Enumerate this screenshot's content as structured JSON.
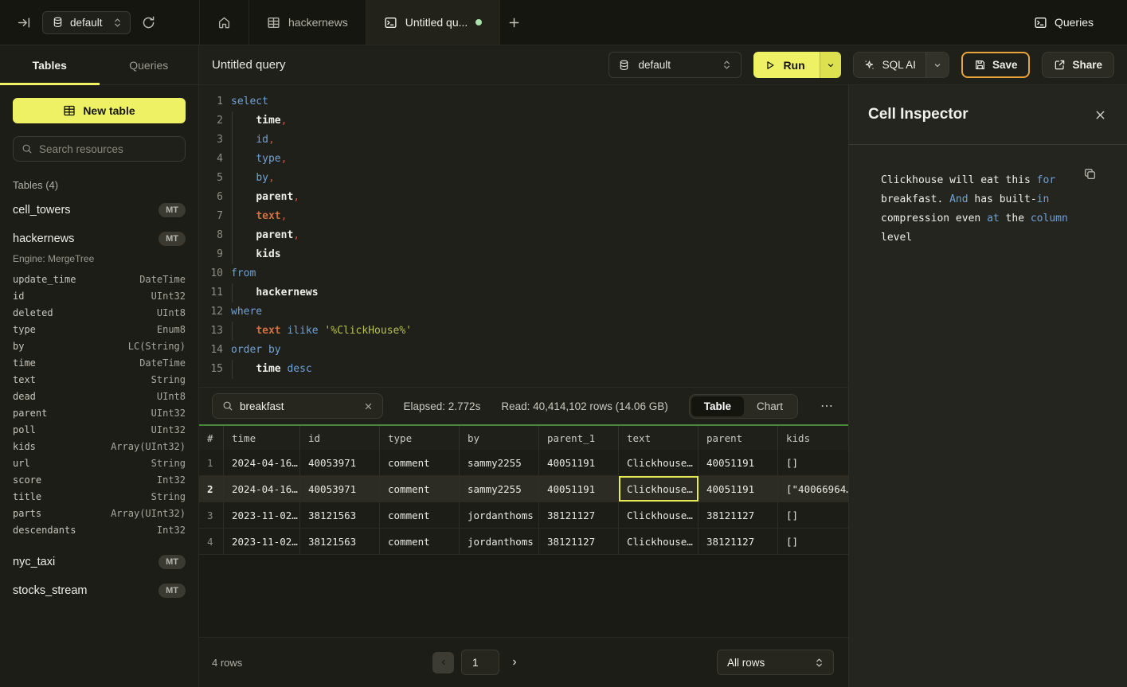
{
  "colors": {
    "accent_yellow": "#edf163",
    "save_border": "#e8a33b",
    "result_green": "#4b873b",
    "keyword_blue": "#6fa1d6",
    "unsaved_dot_green": "#a9e3ac",
    "cell_select_yellow": "#e7eb53"
  },
  "topbar": {
    "database_selector": {
      "value": "default"
    },
    "tabs": [
      {
        "icon": "home-icon",
        "label": ""
      },
      {
        "icon": "table-icon",
        "label": "hackernews"
      },
      {
        "icon": "terminal-icon",
        "label": "Untitled qu...",
        "active": true,
        "unsaved": true
      }
    ],
    "queries_label": "Queries"
  },
  "sidebar": {
    "tabs": [
      {
        "label": "Tables",
        "active": true
      },
      {
        "label": "Queries",
        "active": false
      }
    ],
    "new_table_label": "New table",
    "search_placeholder": "Search resources",
    "section_label": "Tables (4)",
    "tables": [
      {
        "name": "cell_towers",
        "badge": "MT"
      },
      {
        "name": "hackernews",
        "badge": "MT",
        "engine": "Engine: MergeTree",
        "columns": [
          {
            "name": "update_time",
            "type": "DateTime"
          },
          {
            "name": "id",
            "type": "UInt32"
          },
          {
            "name": "deleted",
            "type": "UInt8"
          },
          {
            "name": "type",
            "type": "Enum8"
          },
          {
            "name": "by",
            "type": "LC(String)"
          },
          {
            "name": "time",
            "type": "DateTime"
          },
          {
            "name": "text",
            "type": "String"
          },
          {
            "name": "dead",
            "type": "UInt8"
          },
          {
            "name": "parent",
            "type": "UInt32"
          },
          {
            "name": "poll",
            "type": "UInt32"
          },
          {
            "name": "kids",
            "type": "Array(UInt32)"
          },
          {
            "name": "url",
            "type": "String"
          },
          {
            "name": "score",
            "type": "Int32"
          },
          {
            "name": "title",
            "type": "String"
          },
          {
            "name": "parts",
            "type": "Array(UInt32)"
          },
          {
            "name": "descendants",
            "type": "Int32"
          }
        ]
      },
      {
        "name": "nyc_taxi",
        "badge": "MT"
      },
      {
        "name": "stocks_stream",
        "badge": "MT"
      }
    ]
  },
  "toolbar": {
    "title": "Untitled query",
    "database_selector": {
      "value": "default"
    },
    "run_label": "Run",
    "sql_ai_label": "SQL AI",
    "save_label": "Save",
    "share_label": "Share"
  },
  "editor": {
    "lines": [
      {
        "num": "1",
        "indent": false,
        "tokens": [
          {
            "t": "select",
            "c": "kw"
          }
        ]
      },
      {
        "num": "2",
        "indent": true,
        "tokens": [
          {
            "t": "    "
          },
          {
            "t": "time",
            "c": "ident"
          },
          {
            "t": ",",
            "c": "comma"
          }
        ]
      },
      {
        "num": "3",
        "indent": true,
        "tokens": [
          {
            "t": "    "
          },
          {
            "t": "id",
            "c": "kw"
          },
          {
            "t": ",",
            "c": "comma"
          }
        ]
      },
      {
        "num": "4",
        "indent": true,
        "tokens": [
          {
            "t": "    "
          },
          {
            "t": "type",
            "c": "kw"
          },
          {
            "t": ",",
            "c": "comma"
          }
        ]
      },
      {
        "num": "5",
        "indent": true,
        "tokens": [
          {
            "t": "    "
          },
          {
            "t": "by",
            "c": "kw"
          },
          {
            "t": ",",
            "c": "comma"
          }
        ]
      },
      {
        "num": "6",
        "indent": true,
        "tokens": [
          {
            "t": "    "
          },
          {
            "t": "parent",
            "c": "ident"
          },
          {
            "t": ",",
            "c": "comma"
          }
        ]
      },
      {
        "num": "7",
        "indent": true,
        "tokens": [
          {
            "t": "    "
          },
          {
            "t": "text",
            "c": "col"
          },
          {
            "t": ",",
            "c": "comma"
          }
        ]
      },
      {
        "num": "8",
        "indent": true,
        "tokens": [
          {
            "t": "    "
          },
          {
            "t": "parent",
            "c": "ident"
          },
          {
            "t": ",",
            "c": "comma"
          }
        ]
      },
      {
        "num": "9",
        "indent": true,
        "tokens": [
          {
            "t": "    "
          },
          {
            "t": "kids",
            "c": "ident"
          }
        ]
      },
      {
        "num": "10",
        "indent": false,
        "tokens": [
          {
            "t": "from",
            "c": "kw"
          }
        ]
      },
      {
        "num": "11",
        "indent": true,
        "tokens": [
          {
            "t": "    "
          },
          {
            "t": "hackernews",
            "c": "ident"
          }
        ]
      },
      {
        "num": "12",
        "indent": false,
        "tokens": [
          {
            "t": "where",
            "c": "kw"
          }
        ]
      },
      {
        "num": "13",
        "indent": true,
        "tokens": [
          {
            "t": "    "
          },
          {
            "t": "text",
            "c": "col"
          },
          {
            "t": " "
          },
          {
            "t": "ilike",
            "c": "kw"
          },
          {
            "t": " "
          },
          {
            "t": "'%ClickHouse%'",
            "c": "str"
          }
        ]
      },
      {
        "num": "14",
        "indent": false,
        "tokens": [
          {
            "t": "order by",
            "c": "kw"
          }
        ]
      },
      {
        "num": "15",
        "indent": true,
        "tokens": [
          {
            "t": "    "
          },
          {
            "t": "time",
            "c": "ident"
          },
          {
            "t": " "
          },
          {
            "t": "desc",
            "c": "kw"
          }
        ]
      }
    ]
  },
  "results": {
    "search_value": "breakfast",
    "elapsed": "Elapsed: 2.772s",
    "read": "Read: 40,414,102 rows (14.06 GB)",
    "views": [
      {
        "label": "Table",
        "active": true
      },
      {
        "label": "Chart",
        "active": false
      }
    ],
    "more_label": "⋯",
    "table": {
      "headers": [
        "#",
        "time",
        "id",
        "type",
        "by",
        "parent_1",
        "text",
        "parent",
        "kids"
      ],
      "rows": [
        [
          "1",
          "2024-04-16…",
          "40053971",
          "comment",
          "sammy2255",
          "40051191",
          "Clickhouse…",
          "40051191",
          "[]"
        ],
        [
          "2",
          "2024-04-16…",
          "40053971",
          "comment",
          "sammy2255",
          "40051191",
          "Clickhouse…",
          "40051191",
          "[\"40066964…"
        ],
        [
          "3",
          "2023-11-02…",
          "38121563",
          "comment",
          "jordanthoms",
          "38121127",
          "Clickhouse…",
          "38121127",
          "[]"
        ],
        [
          "4",
          "2023-11-02…",
          "38121563",
          "comment",
          "jordanthoms",
          "38121127",
          "Clickhouse…",
          "38121127",
          "[]"
        ]
      ],
      "selected_row": 2,
      "selected_column": "text"
    },
    "footer": {
      "row_count": "4 rows",
      "page": "1",
      "page_size": "All rows"
    }
  },
  "inspector": {
    "title": "Cell Inspector",
    "lines": [
      [
        {
          "t": "Clickhouse will eat this "
        },
        {
          "t": "for",
          "c": "kw"
        }
      ],
      [
        {
          "t": "breakfast. "
        },
        {
          "t": "And",
          "c": "kw"
        },
        {
          "t": " has built-"
        },
        {
          "t": "in",
          "c": "kw"
        }
      ],
      [
        {
          "t": "compression even "
        },
        {
          "t": "at",
          "c": "kw"
        },
        {
          "t": " the "
        },
        {
          "t": "column",
          "c": "kw"
        },
        {
          "t": " level"
        }
      ]
    ]
  }
}
